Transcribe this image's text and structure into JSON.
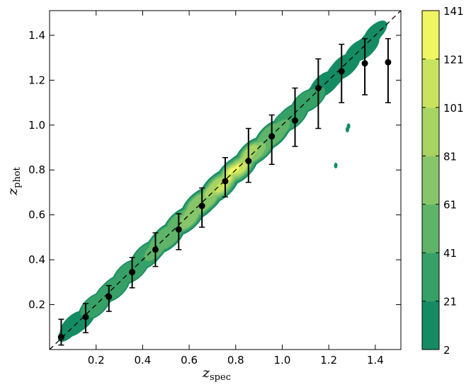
{
  "chart_data": {
    "type": "scatter",
    "title": "",
    "xlabel": "z",
    "xlabel_sub": "spec",
    "ylabel": "z",
    "ylabel_sub": "phot",
    "xlim": [
      0.0,
      1.51
    ],
    "ylim": [
      0.0,
      1.51
    ],
    "x_ticks": [
      "0.2",
      "0.4",
      "0.6",
      "0.8",
      "1.0",
      "1.2",
      "1.4"
    ],
    "y_ticks": [
      "0.2",
      "0.4",
      "0.6",
      "0.8",
      "1.0",
      "1.2",
      "1.4"
    ],
    "reference_line": "y = x (dashed)",
    "density_contours": {
      "colorbar_levels": [
        2,
        21,
        41,
        61,
        81,
        101,
        121,
        141
      ],
      "colors": [
        "#158b64",
        "#37a066",
        "#5fb46a",
        "#86c56a",
        "#a8d462",
        "#cae35f",
        "#f0f562"
      ]
    },
    "series": [
      {
        "marker": "black circles with error bars",
        "x": [
          0.05,
          0.155,
          0.255,
          0.355,
          0.455,
          0.555,
          0.655,
          0.755,
          0.855,
          0.955,
          1.055,
          1.155,
          1.255,
          1.355,
          1.455
        ],
        "y": [
          0.055,
          0.145,
          0.235,
          0.345,
          0.445,
          0.535,
          0.64,
          0.75,
          0.84,
          0.95,
          1.02,
          1.165,
          1.24,
          1.275,
          1.28
        ],
        "y_low": [
          0.02,
          0.075,
          0.17,
          0.275,
          0.37,
          0.445,
          0.545,
          0.68,
          0.745,
          0.825,
          0.905,
          0.985,
          1.1,
          1.135,
          1.1
        ],
        "y_high": [
          0.135,
          0.205,
          0.285,
          0.41,
          0.52,
          0.605,
          0.72,
          0.855,
          0.985,
          1.045,
          1.165,
          1.295,
          1.36,
          1.385,
          1.385
        ]
      }
    ]
  }
}
